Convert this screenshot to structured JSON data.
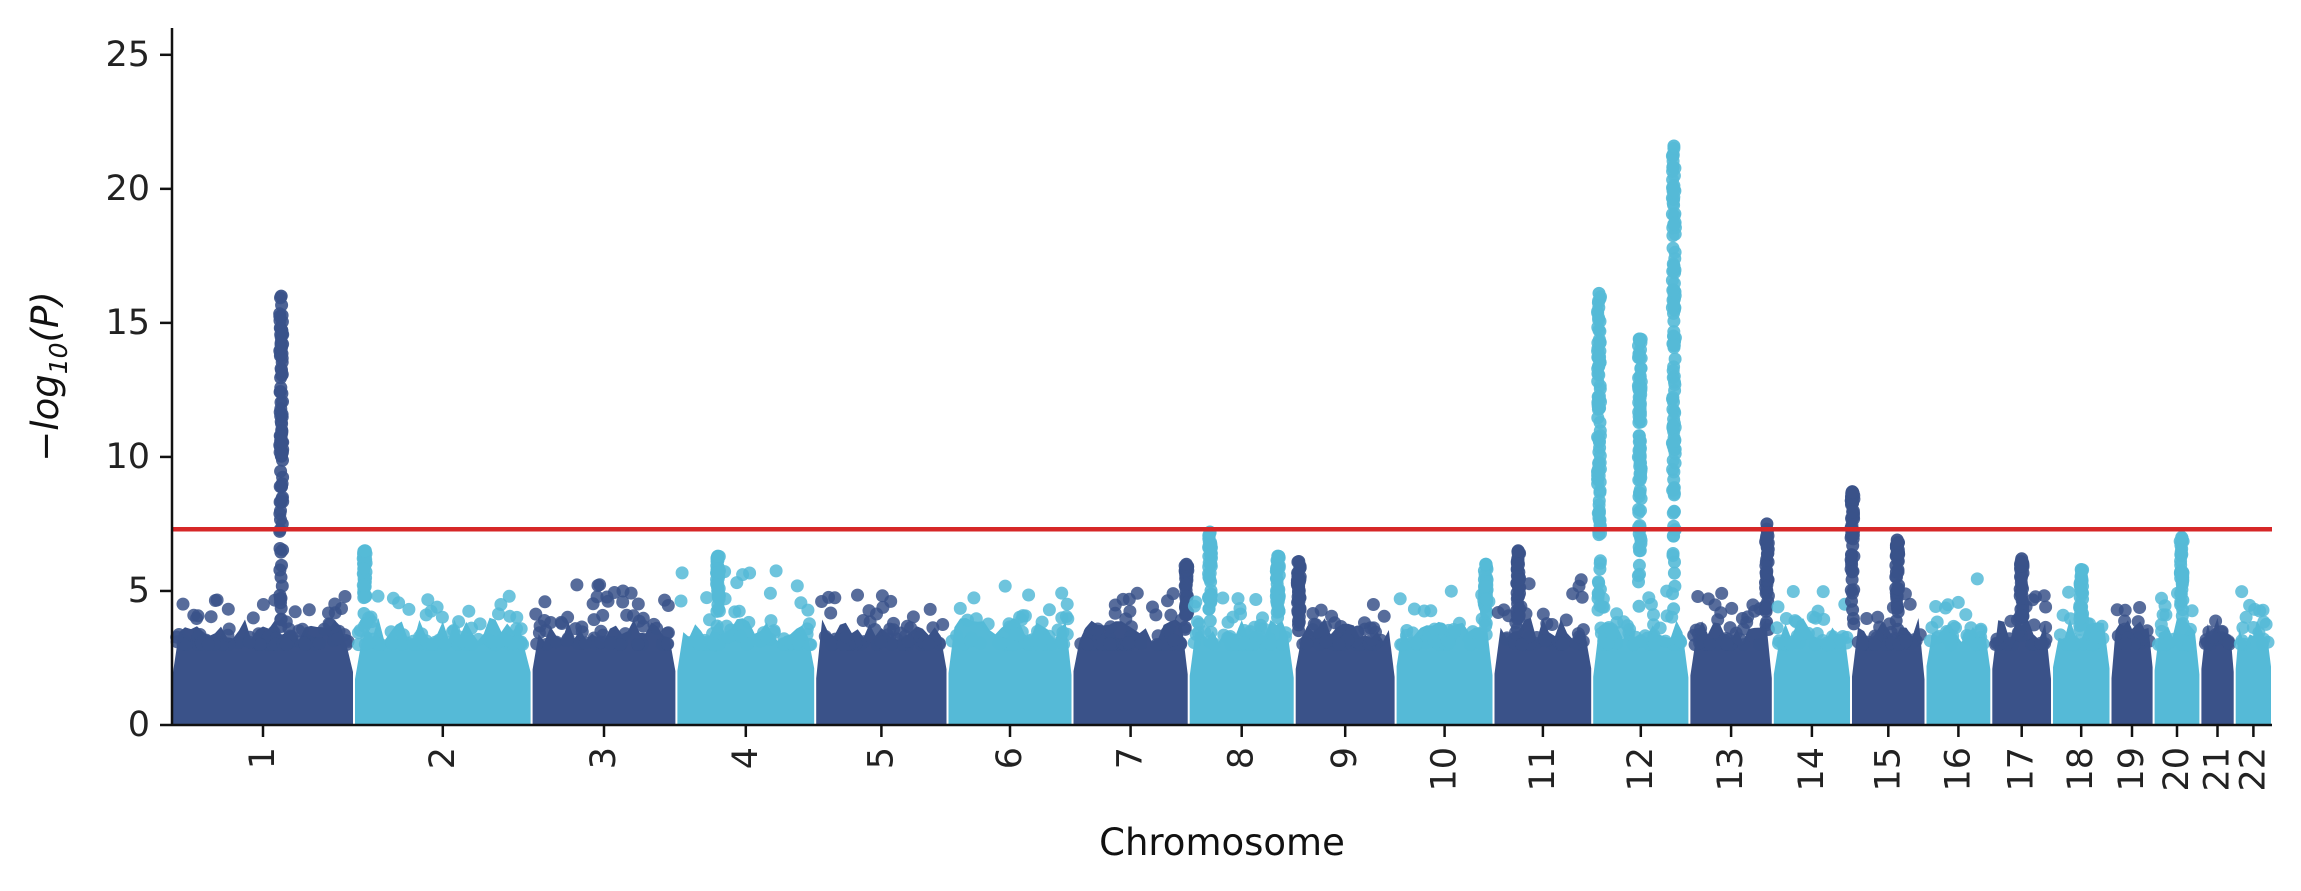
{
  "chart_data": {
    "type": "scatter",
    "subtype": "manhattan",
    "title": "",
    "xlabel": "Chromosome",
    "ylabel_parts": {
      "base": "−log",
      "sub": "10",
      "tail": "(P)"
    },
    "ylim": [
      0,
      26
    ],
    "yticks": [
      "0",
      "5",
      "10",
      "15",
      "20",
      "25"
    ],
    "grid": false,
    "legend": "none",
    "threshold": {
      "value": 7.3,
      "color": "#d62728"
    },
    "colors": {
      "odd": "#3a5289",
      "even": "#55bad7"
    },
    "chromosomes": [
      {
        "label": "1",
        "length": 249,
        "max": 4.8,
        "peaks": [
          {
            "pos": 0.6,
            "top": 16.0
          }
        ]
      },
      {
        "label": "2",
        "length": 243,
        "max": 4.9,
        "peaks": [
          {
            "pos": 0.06,
            "top": 6.5
          }
        ]
      },
      {
        "label": "3",
        "length": 198,
        "max": 5.3,
        "peaks": []
      },
      {
        "label": "4",
        "length": 190,
        "max": 5.8,
        "peaks": [
          {
            "pos": 0.3,
            "top": 6.3
          }
        ]
      },
      {
        "label": "5",
        "length": 181,
        "max": 5.0,
        "peaks": []
      },
      {
        "label": "6",
        "length": 171,
        "max": 5.2,
        "peaks": []
      },
      {
        "label": "7",
        "length": 159,
        "max": 5.0,
        "peaks": [
          {
            "pos": 0.98,
            "top": 6.0
          }
        ]
      },
      {
        "label": "8",
        "length": 145,
        "max": 5.0,
        "peaks": [
          {
            "pos": 0.2,
            "top": 7.2
          },
          {
            "pos": 0.84,
            "top": 6.3
          }
        ]
      },
      {
        "label": "9",
        "length": 138,
        "max": 4.5,
        "peaks": [
          {
            "pos": 0.04,
            "top": 6.1
          }
        ]
      },
      {
        "label": "10",
        "length": 134,
        "max": 5.0,
        "peaks": [
          {
            "pos": 0.92,
            "top": 6.0
          }
        ]
      },
      {
        "label": "11",
        "length": 135,
        "max": 5.5,
        "peaks": [
          {
            "pos": 0.25,
            "top": 6.5
          }
        ]
      },
      {
        "label": "12",
        "length": 133,
        "max": 5.0,
        "peaks": [
          {
            "pos": 0.07,
            "top": 16.1
          },
          {
            "pos": 0.49,
            "top": 14.4
          },
          {
            "pos": 0.84,
            "top": 21.6
          }
        ]
      },
      {
        "label": "13",
        "length": 114,
        "max": 5.0,
        "peaks": [
          {
            "pos": 0.93,
            "top": 7.5
          }
        ]
      },
      {
        "label": "14",
        "length": 107,
        "max": 5.0,
        "peaks": []
      },
      {
        "label": "15",
        "length": 102,
        "max": 5.0,
        "peaks": [
          {
            "pos": 0.02,
            "top": 8.7
          },
          {
            "pos": 0.62,
            "top": 6.9
          }
        ]
      },
      {
        "label": "16",
        "length": 90,
        "max": 5.5,
        "peaks": []
      },
      {
        "label": "17",
        "length": 83,
        "max": 5.2,
        "peaks": [
          {
            "pos": 0.5,
            "top": 6.2
          }
        ]
      },
      {
        "label": "18",
        "length": 80,
        "max": 5.0,
        "peaks": [
          {
            "pos": 0.5,
            "top": 5.8
          }
        ]
      },
      {
        "label": "19",
        "length": 59,
        "max": 4.5,
        "peaks": []
      },
      {
        "label": "20",
        "length": 64,
        "max": 5.0,
        "peaks": [
          {
            "pos": 0.6,
            "top": 7.0
          }
        ]
      },
      {
        "label": "21",
        "length": 47,
        "max": 4.6,
        "peaks": []
      },
      {
        "label": "22",
        "length": 51,
        "max": 5.2,
        "peaks": []
      }
    ]
  }
}
